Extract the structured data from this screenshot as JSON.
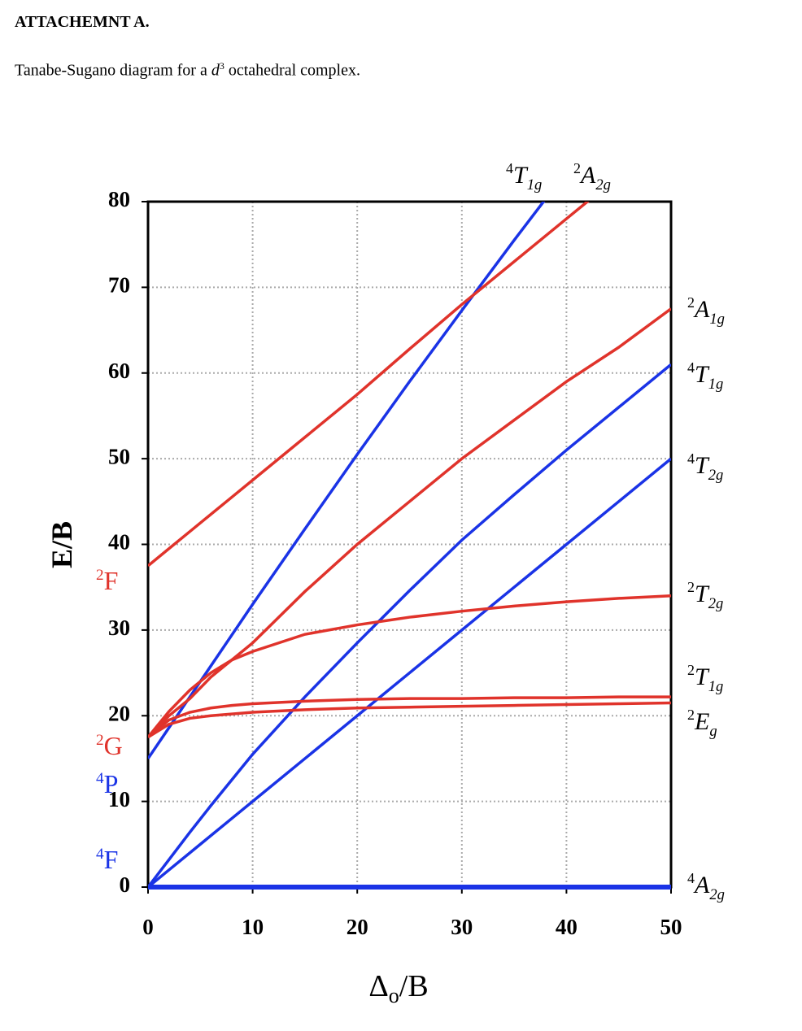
{
  "header": {
    "title": "ATTACHEMNT A.",
    "caption": {
      "before": "Tanabe-Sugano diagram for a ",
      "italic": "d",
      "sup": "3",
      "after": " octahedral complex."
    }
  },
  "chart_data": {
    "type": "line",
    "y_label": "E/B",
    "x_label": {
      "symbol": "Δ",
      "sub": "o",
      "rest": "/B"
    },
    "xlim": [
      0,
      50
    ],
    "ylim": [
      0,
      80
    ],
    "xticks": [
      0,
      10,
      20,
      30,
      40,
      50
    ],
    "yticks": [
      0,
      10,
      20,
      30,
      40,
      50,
      60,
      70,
      80
    ],
    "grid": true,
    "x": [
      0,
      2,
      4,
      6,
      8,
      10,
      15,
      20,
      25,
      30,
      35,
      40,
      45,
      50
    ],
    "series": [
      {
        "label": {
          "sup": "4",
          "symbol": "A",
          "sub": "2g"
        },
        "color": "#1a33e6",
        "values": [
          0,
          0,
          0,
          0,
          0,
          0,
          0,
          0,
          0,
          0,
          0,
          0,
          0,
          0
        ]
      },
      {
        "label": {
          "sup": "4",
          "symbol": "T",
          "sub": "2g"
        },
        "color": "#1a33e6",
        "values": [
          0,
          2,
          4,
          6,
          8,
          10,
          15,
          20,
          25,
          30,
          35,
          40,
          45,
          50
        ]
      },
      {
        "label": {
          "sup": "4",
          "symbol": "T",
          "sub": "1g"
        },
        "color": "#1a33e6",
        "values": [
          0,
          3.2,
          6.4,
          9.5,
          12.5,
          15.5,
          22.2,
          28.5,
          34.6,
          40.5,
          45.8,
          51,
          56,
          61
        ]
      },
      {
        "label": {
          "sup": "4",
          "symbol": "T",
          "sub": "1g"
        },
        "color": "#1a33e6",
        "values": [
          15,
          18.6,
          22.2,
          25.8,
          29.4,
          33,
          41.8,
          50.5,
          59,
          67.3,
          75.5,
          83.5,
          null,
          null
        ]
      },
      {
        "label": {
          "sup": "2",
          "symbol": "E",
          "sub": "g"
        },
        "color": "#e0332b",
        "values": [
          17.5,
          19,
          19.7,
          20,
          20.2,
          20.4,
          20.7,
          20.9,
          21,
          21.1,
          21.2,
          21.3,
          21.4,
          21.5
        ]
      },
      {
        "label": {
          "sup": "2",
          "symbol": "T",
          "sub": "1g"
        },
        "color": "#e0332b",
        "values": [
          17.5,
          19.5,
          20.4,
          20.9,
          21.2,
          21.4,
          21.7,
          21.9,
          22,
          22,
          22.1,
          22.1,
          22.2,
          22.2
        ]
      },
      {
        "label": {
          "sup": "2",
          "symbol": "T",
          "sub": "2g"
        },
        "color": "#e0332b",
        "values": [
          17.5,
          20.5,
          23,
          25,
          26.5,
          27.5,
          29.5,
          30.6,
          31.5,
          32.2,
          32.8,
          33.3,
          33.7,
          34
        ]
      },
      {
        "label": {
          "sup": "2",
          "symbol": "A",
          "sub": "1g"
        },
        "color": "#e0332b",
        "values": [
          17.5,
          20,
          22,
          24.5,
          26.5,
          28.5,
          34.5,
          40,
          45,
          50,
          54.5,
          59,
          63,
          67.5
        ]
      },
      {
        "label": {
          "sup": "2",
          "symbol": "A",
          "sub": "2g"
        },
        "color": "#e0332b",
        "values": [
          37.5,
          39.5,
          41.5,
          43.5,
          45.5,
          47.5,
          52.5,
          57.5,
          62.8,
          68,
          73,
          78,
          83,
          null
        ]
      }
    ],
    "free_ion_terms": [
      {
        "sup": "2",
        "symbol": "F",
        "color": "#e0332b"
      },
      {
        "sup": "2",
        "symbol": "G",
        "color": "#e0332b"
      },
      {
        "sup": "4",
        "symbol": "P",
        "color": "#1a33e6"
      },
      {
        "sup": "4",
        "symbol": "F",
        "color": "#1a33e6"
      }
    ]
  }
}
